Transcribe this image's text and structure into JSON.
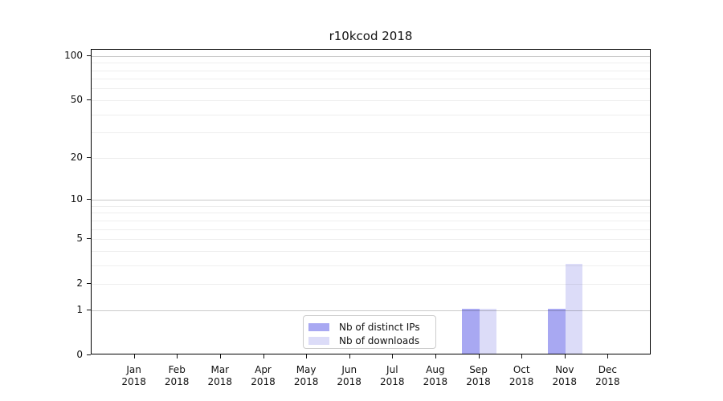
{
  "chart_data": {
    "type": "bar",
    "title": "r10kcod 2018",
    "categories": [
      "Jan",
      "Feb",
      "Mar",
      "Apr",
      "May",
      "Jun",
      "Jul",
      "Aug",
      "Sep",
      "Oct",
      "Nov",
      "Dec"
    ],
    "year_label": "2018",
    "series": [
      {
        "name": "Nb of distinct IPs",
        "color": "#a8a8f2",
        "values": [
          0,
          0,
          0,
          0,
          0,
          0,
          0,
          0,
          1,
          0,
          1,
          0
        ]
      },
      {
        "name": "Nb of downloads",
        "color": "#dcdcf8",
        "values": [
          0,
          0,
          0,
          0,
          0,
          0,
          0,
          0,
          1,
          0,
          3,
          0
        ]
      }
    ],
    "y_scale": "log1p",
    "y_axis": {
      "ticks": [
        0,
        1,
        2,
        5,
        10,
        20,
        50,
        100
      ],
      "max": 110,
      "major_gridlines": [
        1,
        10,
        100
      ],
      "minor_gridlines": [
        2,
        3,
        4,
        5,
        6,
        7,
        8,
        9,
        20,
        30,
        40,
        50,
        60,
        70,
        80,
        90
      ]
    },
    "xlabel": "",
    "ylabel": "",
    "grid": true,
    "legend_position": "lower center",
    "colors": {
      "major_grid": "#cccccc",
      "minor_grid": "#efefef",
      "axis": "#000000",
      "text": "#111111",
      "background": "#ffffff"
    }
  }
}
